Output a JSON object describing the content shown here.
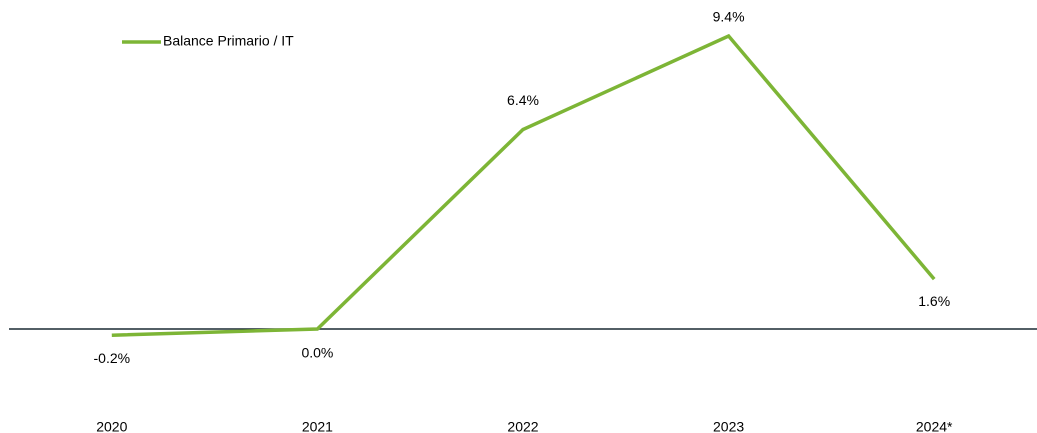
{
  "chart_data": {
    "type": "line",
    "categories": [
      "2020",
      "2021",
      "2022",
      "2023",
      "2024*"
    ],
    "series": [
      {
        "name": "Balance Primario / IT",
        "color": "#7db536",
        "values": [
          -0.2,
          0.0,
          6.4,
          9.4,
          1.6
        ],
        "value_labels": [
          "-0.2%",
          "0.0%",
          "6.4%",
          "9.4%",
          "1.6%"
        ]
      }
    ],
    "legend": "top-left"
  }
}
